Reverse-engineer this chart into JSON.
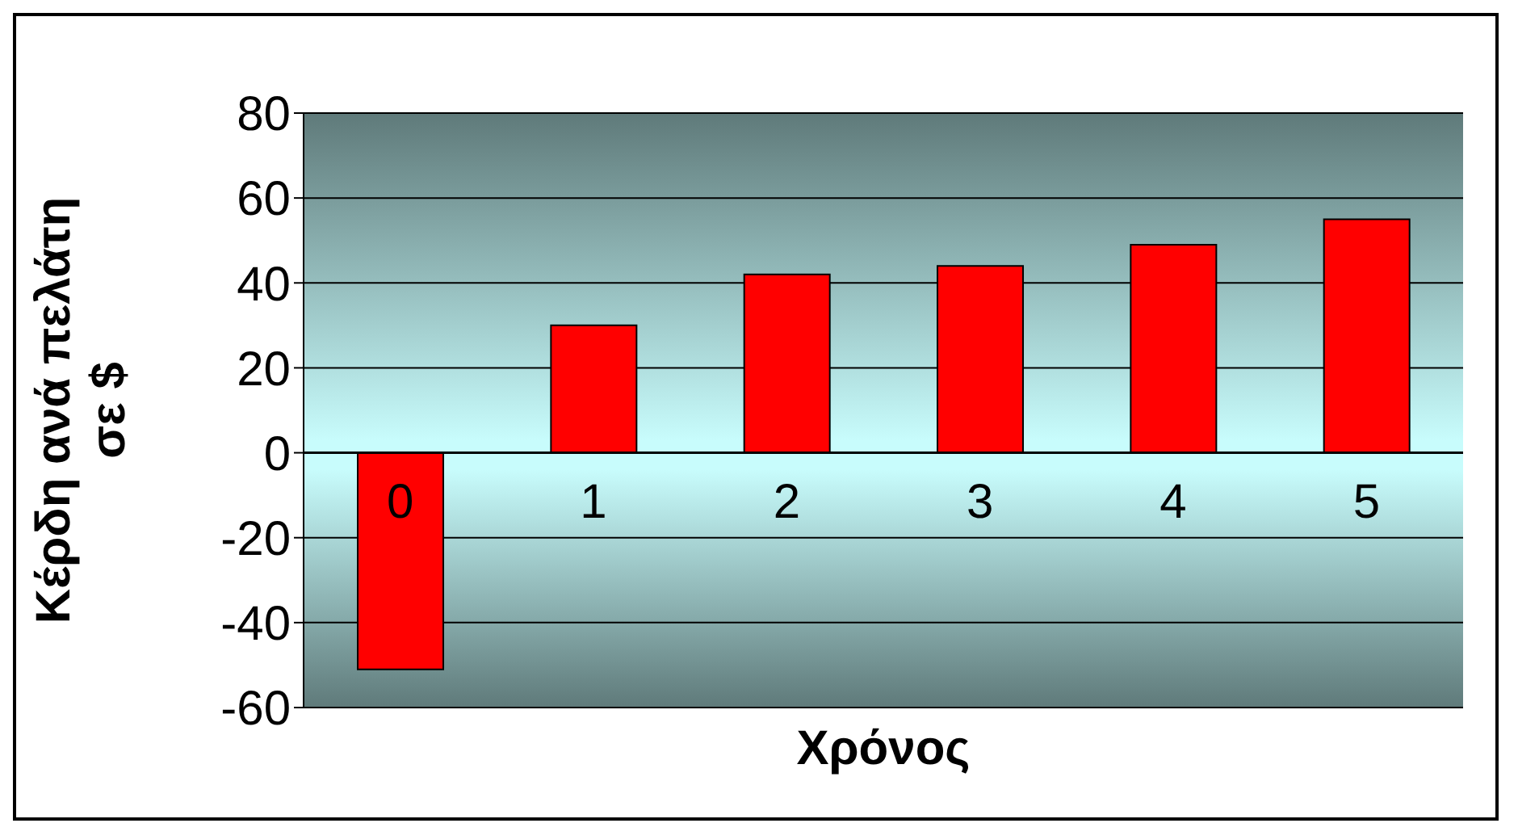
{
  "chart_data": {
    "type": "bar",
    "xlabel": "Χρόνος",
    "ylabel": "Κέρδη ανά πελάτη σε $",
    "categories": [
      "0",
      "1",
      "2",
      "3",
      "4",
      "5"
    ],
    "values": [
      -51,
      30,
      42,
      44,
      49,
      55
    ],
    "color": "#ff0000",
    "ylim": [
      -60,
      80
    ],
    "yticks": [
      -60,
      -40,
      -20,
      0,
      20,
      40,
      60,
      80
    ],
    "grid": "y",
    "legend": false
  }
}
